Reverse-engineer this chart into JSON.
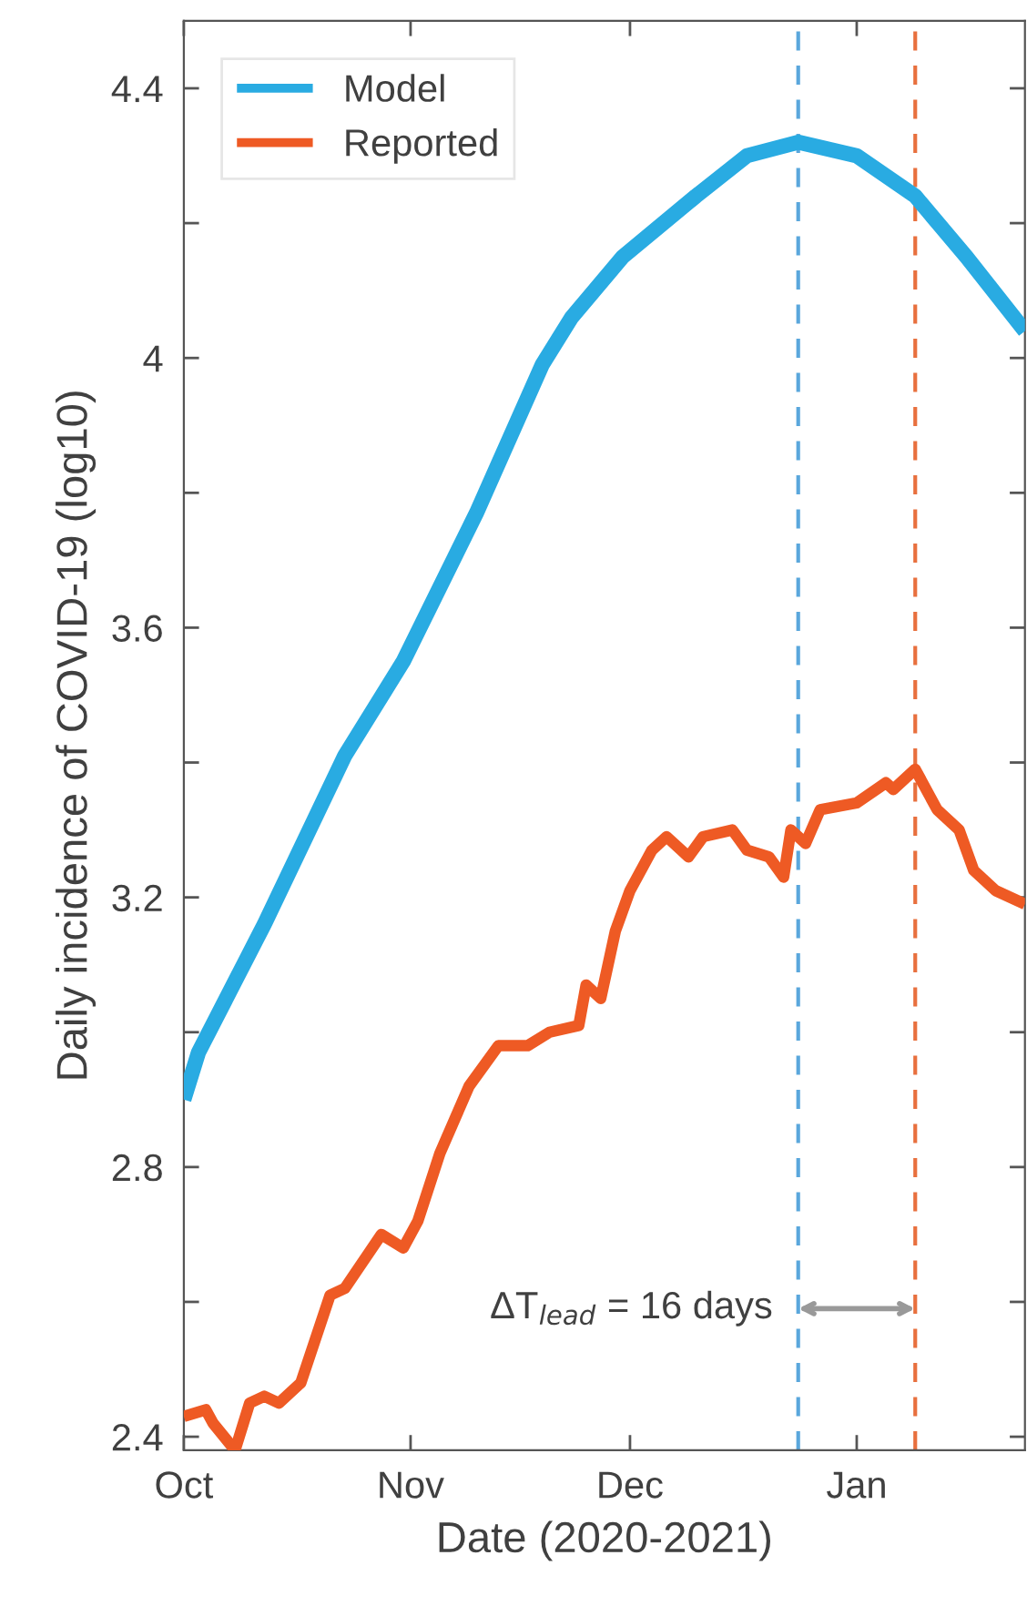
{
  "chart_data": {
    "type": "line",
    "xlabel": "Date (2020-2021)",
    "ylabel": "Daily incidence of COVID-19 (log10)",
    "xlim": [
      "2020-10-01",
      "2021-01-24"
    ],
    "ylim": [
      2.38,
      4.5
    ],
    "xticks": [
      {
        "value": "2020-10-01",
        "label": "Oct"
      },
      {
        "value": "2020-11-01",
        "label": "Nov"
      },
      {
        "value": "2020-12-01",
        "label": "Dec"
      },
      {
        "value": "2021-01-01",
        "label": "Jan"
      }
    ],
    "yticks": [
      2.4,
      {
        "value": 2.6,
        "label": null
      },
      2.8,
      {
        "value": 3.0,
        "label": null
      },
      3.2,
      {
        "value": 3.4,
        "label": null
      },
      3.6,
      {
        "value": 3.8,
        "label": null
      },
      4,
      {
        "value": 4.2,
        "label": null
      },
      4.4
    ],
    "grid": false,
    "legend": "top left",
    "marker": "none",
    "line_style": "solid",
    "series": [
      {
        "name": "Model",
        "color": "#29abe2",
        "x": [
          "2020-10-01",
          "2020-10-03",
          "2020-10-12",
          "2020-10-23",
          "2020-10-31",
          "2020-11-05",
          "2020-11-10",
          "2020-11-19",
          "2020-11-23",
          "2020-11-30",
          "2020-12-10",
          "2020-12-17",
          "2020-12-24",
          "2021-01-01",
          "2021-01-09",
          "2021-01-16",
          "2021-01-24"
        ],
        "values": [
          2.9,
          2.97,
          3.16,
          3.41,
          3.55,
          3.66,
          3.77,
          3.99,
          4.06,
          4.15,
          4.24,
          4.3,
          4.32,
          4.3,
          4.24,
          4.15,
          4.04
        ]
      },
      {
        "name": "Reported",
        "color": "#ee5a24",
        "x": [
          "2020-10-01",
          "2020-10-04",
          "2020-10-05",
          "2020-10-08",
          "2020-10-10",
          "2020-10-12",
          "2020-10-14",
          "2020-10-17",
          "2020-10-21",
          "2020-10-23",
          "2020-10-28",
          "2020-10-31",
          "2020-11-02",
          "2020-11-05",
          "2020-11-09",
          "2020-11-13",
          "2020-11-17",
          "2020-11-20",
          "2020-11-24",
          "2020-11-25",
          "2020-11-27",
          "2020-11-29",
          "2020-12-01",
          "2020-12-04",
          "2020-12-06",
          "2020-12-09",
          "2020-12-11",
          "2020-12-15",
          "2020-12-17",
          "2020-12-20",
          "2020-12-22",
          "2020-12-23",
          "2020-12-25",
          "2020-12-27",
          "2021-01-01",
          "2021-01-05",
          "2021-01-06",
          "2021-01-09",
          "2021-01-12",
          "2021-01-15",
          "2021-01-17",
          "2021-01-20",
          "2021-01-24"
        ],
        "values": [
          2.43,
          2.44,
          2.42,
          2.38,
          2.45,
          2.46,
          2.45,
          2.48,
          2.61,
          2.62,
          2.7,
          2.68,
          2.72,
          2.82,
          2.92,
          2.98,
          2.98,
          3.0,
          3.01,
          3.07,
          3.05,
          3.15,
          3.21,
          3.27,
          3.29,
          3.26,
          3.29,
          3.3,
          3.27,
          3.26,
          3.23,
          3.3,
          3.28,
          3.33,
          3.34,
          3.37,
          3.36,
          3.39,
          3.33,
          3.3,
          3.24,
          3.21,
          3.19
        ]
      }
    ],
    "ref_lines": [
      {
        "axis": "x",
        "value": "2020-12-24",
        "label": null,
        "color": "#5aa7dc",
        "line_style": "dashed"
      },
      {
        "axis": "x",
        "value": "2021-01-09",
        "label": null,
        "color": "#e8703e",
        "line_style": "dashed"
      }
    ],
    "annotations": [
      {
        "text": "ΔT$_{lead}$ = 16 days",
        "x": "2020-12-24",
        "y": 2.59
      }
    ]
  }
}
